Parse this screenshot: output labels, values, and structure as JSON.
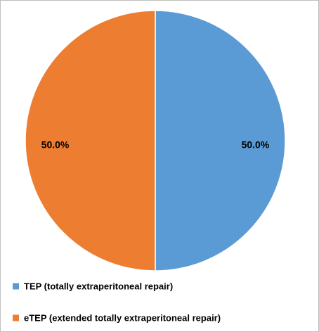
{
  "chart_data": {
    "type": "pie",
    "categories": [
      "TEP (totally extraperitoneal repair)",
      "eTEP (extended totally extraperitoneal repair)"
    ],
    "values": [
      50,
      50
    ],
    "value_labels": [
      "50.0%",
      "50.0%"
    ],
    "colors": [
      "#5b9bd5",
      "#ed7d31"
    ],
    "legend": "bottom"
  }
}
